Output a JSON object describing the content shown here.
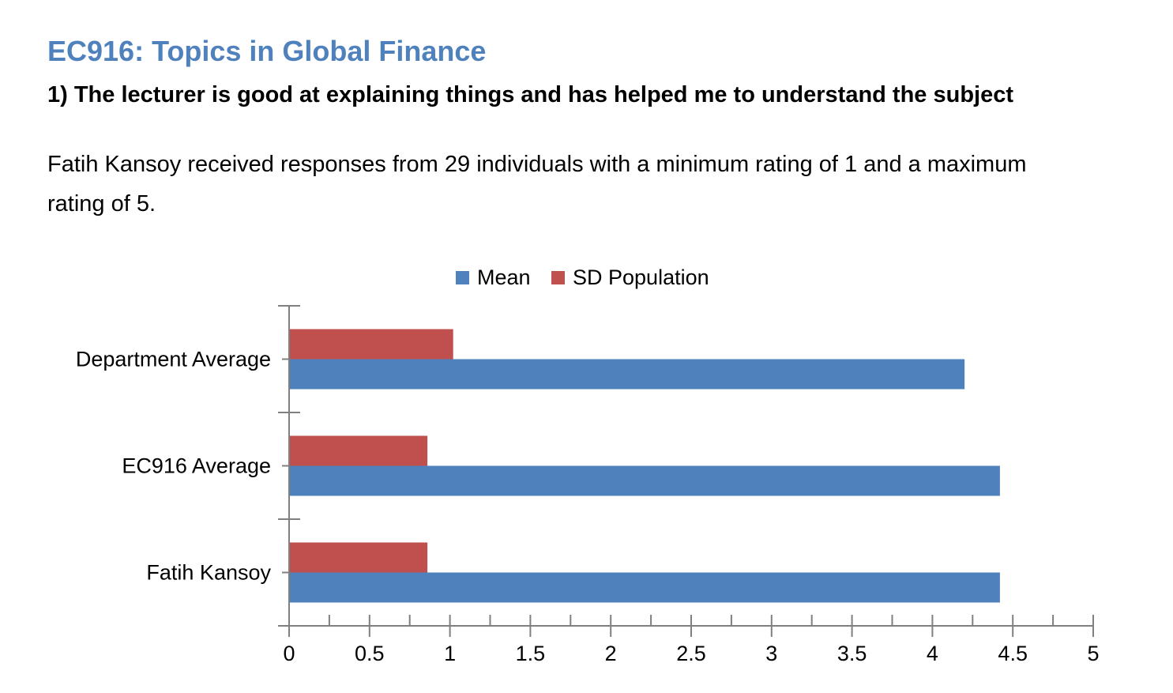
{
  "header": {
    "title": "EC916: Topics in Global Finance",
    "question": "1) The lecturer is good at explaining things and has helped me to understand the subject",
    "summary": "Fatih Kansoy received responses from 29 individuals with a minimum rating of 1 and a maximum rating of 5."
  },
  "colors": {
    "title": "#4f81bd",
    "mean": "#4f81bd",
    "sd": "#c0504d"
  },
  "chart_data": {
    "type": "bar",
    "orientation": "horizontal",
    "categories": [
      "Department Average",
      "EC916 Average",
      "Fatih Kansoy"
    ],
    "series": [
      {
        "name": "Mean",
        "color": "#4f81bd",
        "values": [
          4.2,
          4.42,
          4.42
        ]
      },
      {
        "name": "SD Population",
        "color": "#c0504d",
        "values": [
          1.02,
          0.86,
          0.86
        ]
      }
    ],
    "xlim": [
      0,
      5
    ],
    "xticks": [
      "0",
      "0.5",
      "1",
      "1.5",
      "2",
      "2.5",
      "3",
      "3.5",
      "4",
      "4.5",
      "5"
    ],
    "legend_position": "top",
    "grid": false
  }
}
